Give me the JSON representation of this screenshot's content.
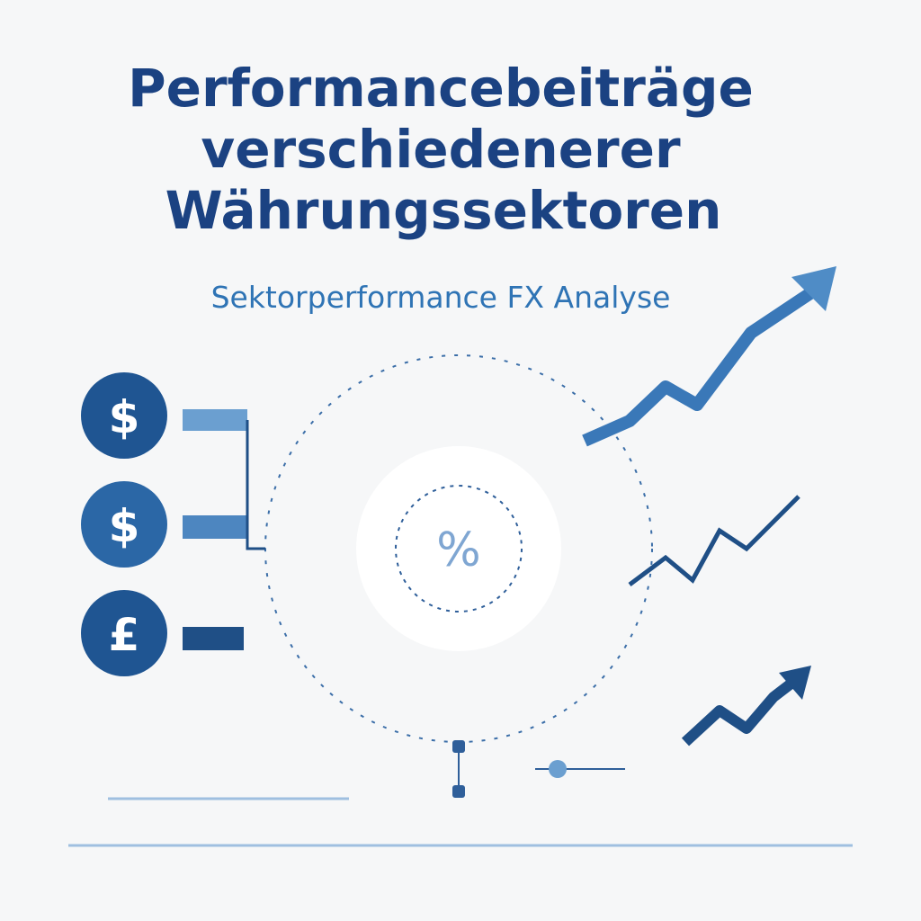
{
  "header": {
    "title_lines": [
      "Performancebeiträge",
      "verschiedenerer",
      "Währungssektoren"
    ],
    "subtitle": "Sektorperformance FX Analyse"
  },
  "icons": {
    "currencies": [
      "$",
      "$",
      "£"
    ],
    "center": "%"
  }
}
